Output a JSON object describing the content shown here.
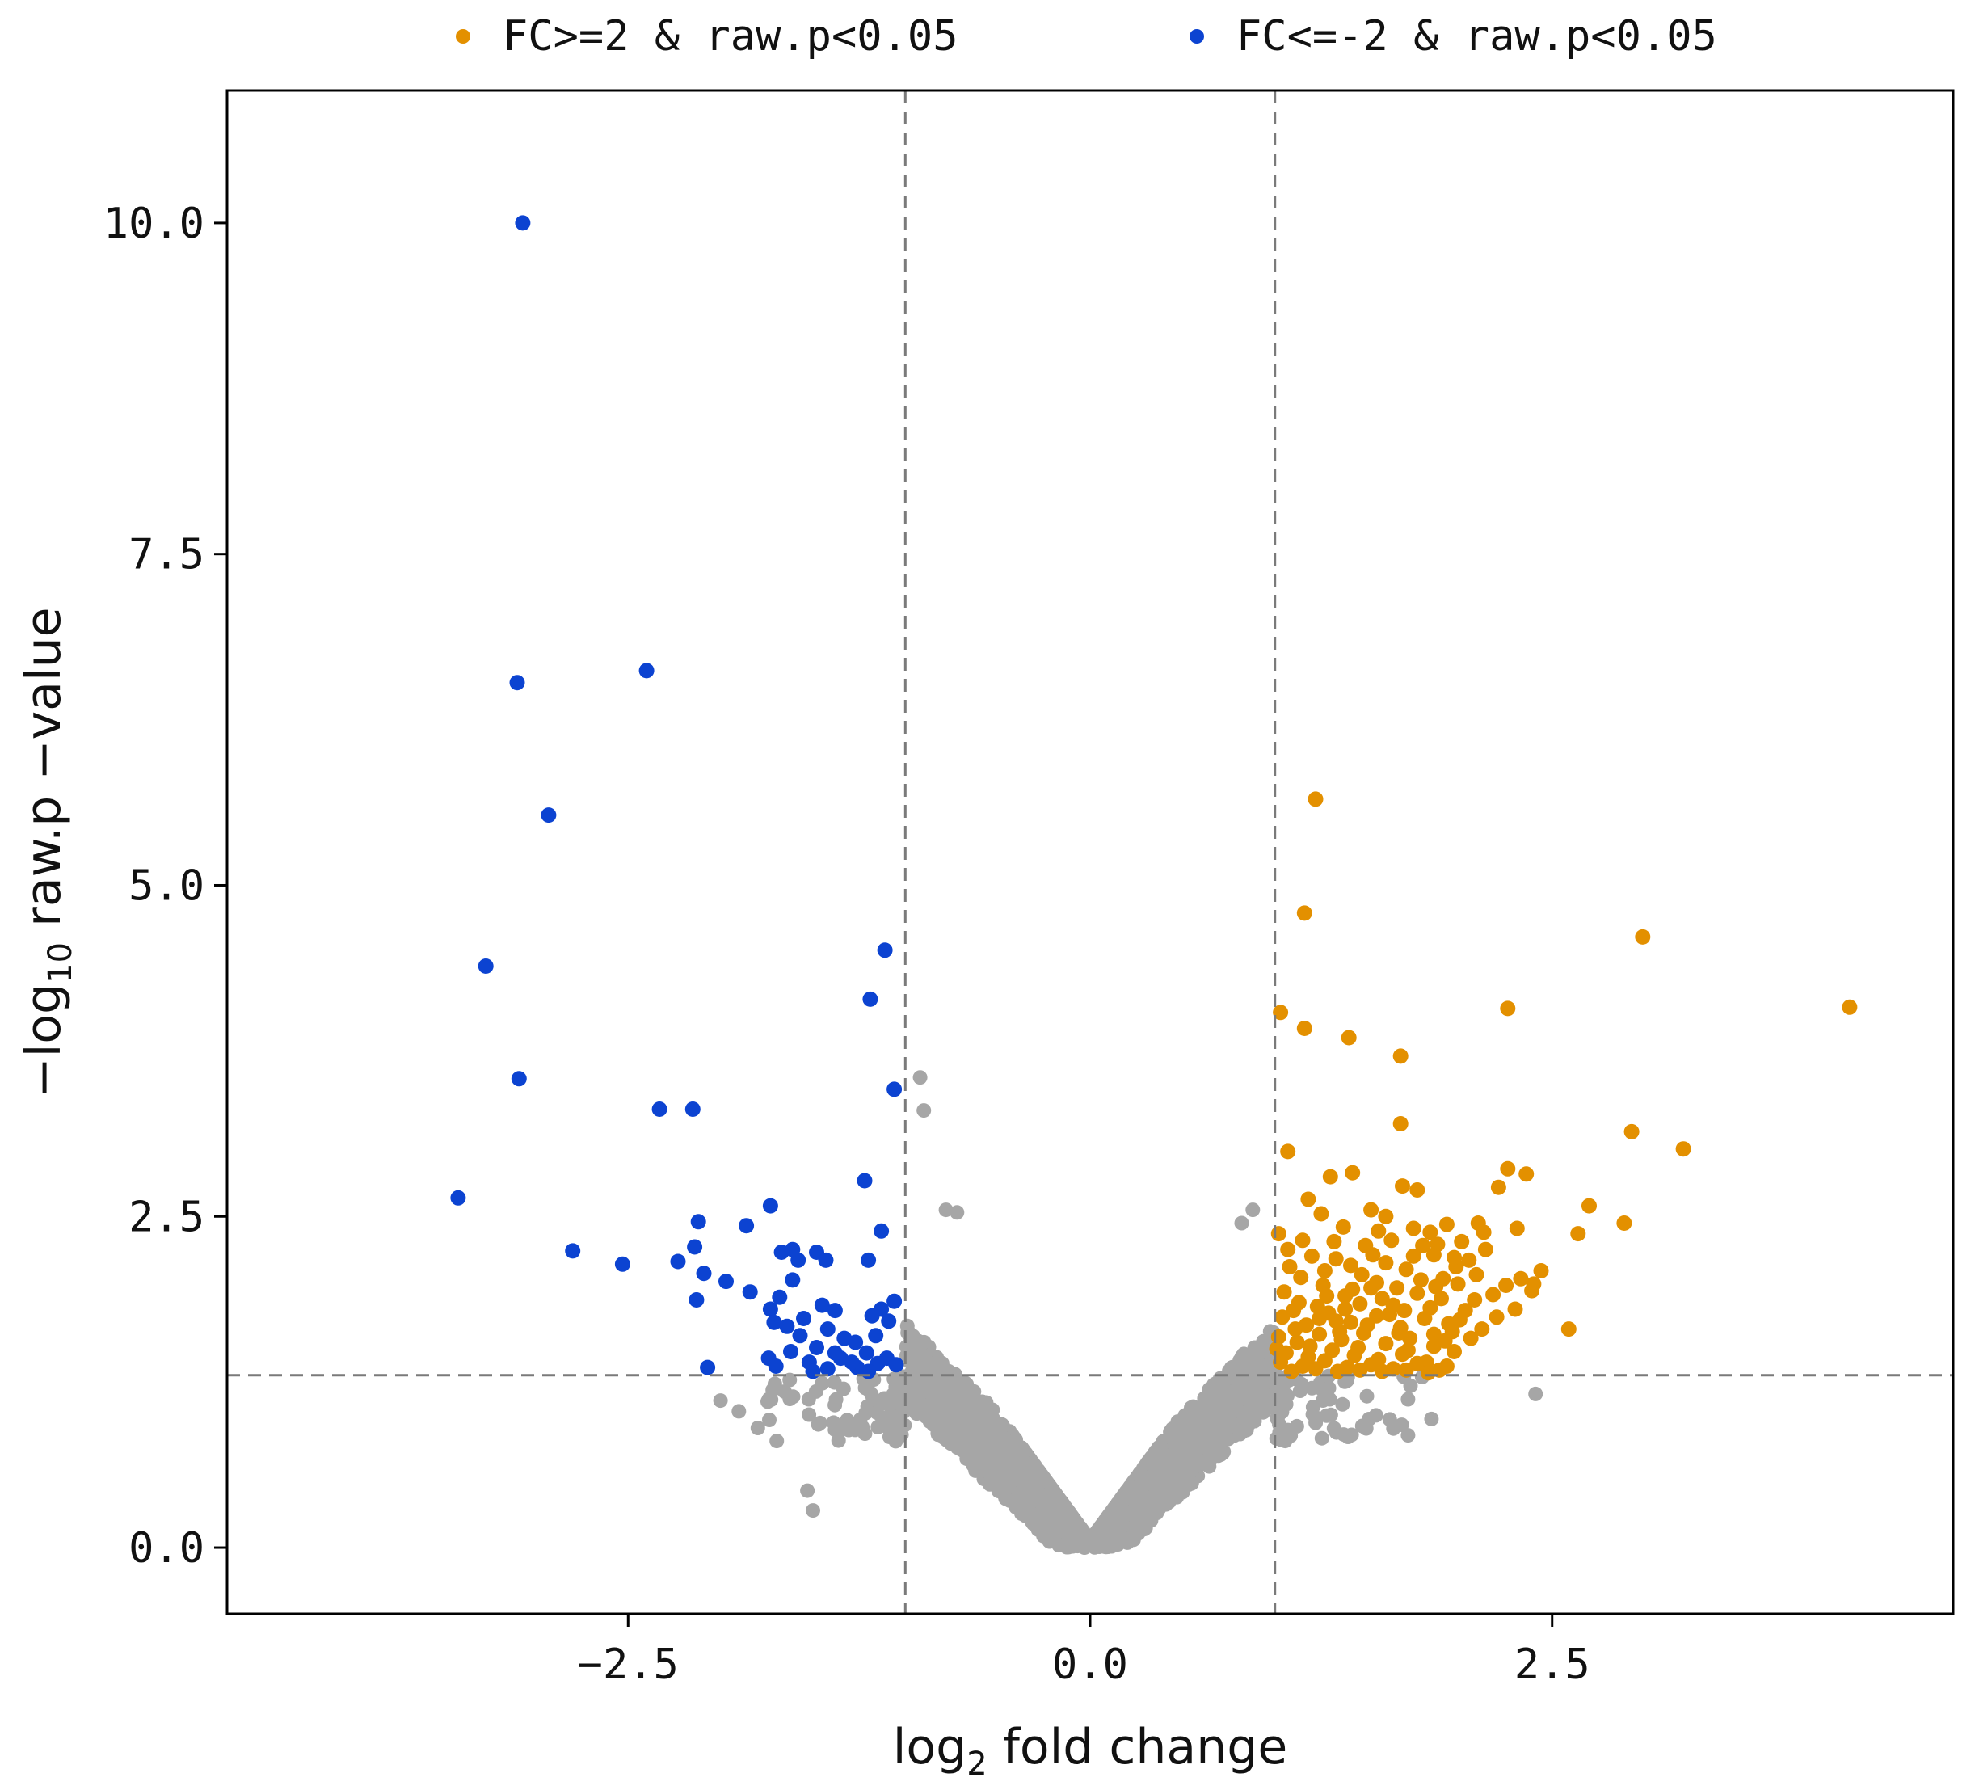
{
  "chart_data": {
    "type": "scatter",
    "title": "",
    "xlabel": "log₂ fold change",
    "xlabel_main": "log",
    "xlabel_sub": "2",
    "xlabel_rest": " fold change",
    "ylabel": "−log₁₀ raw.p −value",
    "ylabel_main": "−log",
    "ylabel_sub": "10",
    "ylabel_rest": " raw.p −value",
    "xlim": [
      -4.67,
      4.67
    ],
    "ylim": [
      -0.5,
      11.0
    ],
    "xticks": [
      -2.5,
      0.0,
      2.5
    ],
    "xtick_labels": [
      "−2.5",
      "0.0",
      "2.5"
    ],
    "yticks": [
      0.0,
      2.5,
      5.0,
      7.5,
      10.0
    ],
    "ytick_labels": [
      "0.0",
      "2.5",
      "5.0",
      "7.5",
      "10.0"
    ],
    "grid": false,
    "legend_position": "top",
    "thresholds": {
      "log2fc_lines": [
        -1.0,
        1.0
      ],
      "neg_log10_p_line": 1.301
    },
    "series": [
      {
        "name": "not significant",
        "color": "#a6a6a6",
        "in_legend": false,
        "generated": "volcano-background cloud (dense, |log2FC| < ~2.5, -log10 p < ~3.5)"
      },
      {
        "name": "FC>=2 & raw.p<0.05",
        "color": "#e39000",
        "in_legend": true,
        "points": [
          [
            1.22,
            5.65
          ],
          [
            1.16,
            4.79
          ],
          [
            1.03,
            4.04
          ],
          [
            1.16,
            3.92
          ],
          [
            1.4,
            3.85
          ],
          [
            1.68,
            3.71
          ],
          [
            1.68,
            3.2
          ],
          [
            1.07,
            2.99
          ],
          [
            2.26,
            4.07
          ],
          [
            2.99,
            4.61
          ],
          [
            4.11,
            4.08
          ],
          [
            2.93,
            3.14
          ],
          [
            3.21,
            3.01
          ],
          [
            2.26,
            2.86
          ],
          [
            2.36,
            2.82
          ],
          [
            2.7,
            2.58
          ],
          [
            2.64,
            2.37
          ],
          [
            2.89,
            2.45
          ],
          [
            2.59,
            1.65
          ],
          [
            2.44,
            2.09
          ],
          [
            1.3,
            2.8
          ],
          [
            1.42,
            2.83
          ],
          [
            1.18,
            2.63
          ],
          [
            1.52,
            2.55
          ],
          [
            1.69,
            2.73
          ],
          [
            1.77,
            2.7
          ],
          [
            2.21,
            2.72
          ],
          [
            2.1,
            2.45
          ],
          [
            1.93,
            2.44
          ],
          [
            1.6,
            2.5
          ],
          [
            1.25,
            2.52
          ],
          [
            1.02,
            2.37
          ],
          [
            1.15,
            2.32
          ],
          [
            1.37,
            2.42
          ],
          [
            1.49,
            2.28
          ],
          [
            1.75,
            2.41
          ],
          [
            1.84,
            2.38
          ],
          [
            2.01,
            2.31
          ],
          [
            2.14,
            2.25
          ],
          [
            2.31,
            2.41
          ],
          [
            2.39,
            1.94
          ],
          [
            2.25,
            1.98
          ],
          [
            2.33,
            2.03
          ],
          [
            2.4,
            1.99
          ],
          [
            1.08,
            2.12
          ],
          [
            1.2,
            2.2
          ],
          [
            1.33,
            2.18
          ],
          [
            1.47,
            2.06
          ],
          [
            1.6,
            2.15
          ],
          [
            1.71,
            2.1
          ],
          [
            1.86,
            2.21
          ],
          [
            1.98,
            2.12
          ],
          [
            2.09,
            2.06
          ],
          [
            2.18,
            1.91
          ],
          [
            2.2,
            1.74
          ],
          [
            2.3,
            1.8
          ],
          [
            1.05,
            1.93
          ],
          [
            1.13,
            1.85
          ],
          [
            1.26,
            1.98
          ],
          [
            1.38,
            1.9
          ],
          [
            1.52,
            1.96
          ],
          [
            1.64,
            1.83
          ],
          [
            1.77,
            1.92
          ],
          [
            1.9,
            1.88
          ],
          [
            2.03,
            1.79
          ],
          [
            2.12,
            1.65
          ],
          [
            1.04,
            1.74
          ],
          [
            1.17,
            1.68
          ],
          [
            1.29,
            1.77
          ],
          [
            1.41,
            1.7
          ],
          [
            1.55,
            1.75
          ],
          [
            1.68,
            1.66
          ],
          [
            1.81,
            1.73
          ],
          [
            1.94,
            1.69
          ],
          [
            2.06,
            1.58
          ],
          [
            1.02,
            1.59
          ],
          [
            1.12,
            1.55
          ],
          [
            1.24,
            1.61
          ],
          [
            1.36,
            1.57
          ],
          [
            1.48,
            1.62
          ],
          [
            1.6,
            1.54
          ],
          [
            1.73,
            1.58
          ],
          [
            1.86,
            1.52
          ],
          [
            1.97,
            1.48
          ],
          [
            1.06,
            1.47
          ],
          [
            1.18,
            1.44
          ],
          [
            1.31,
            1.49
          ],
          [
            1.43,
            1.45
          ],
          [
            1.56,
            1.42
          ],
          [
            1.69,
            1.46
          ],
          [
            1.82,
            1.4
          ],
          [
            1.93,
            1.37
          ],
          [
            1.03,
            1.4
          ],
          [
            1.15,
            1.37
          ],
          [
            1.27,
            1.41
          ],
          [
            1.39,
            1.36
          ],
          [
            1.52,
            1.38
          ],
          [
            1.64,
            1.35
          ],
          [
            1.77,
            1.39
          ],
          [
            1.89,
            1.34
          ],
          [
            1.09,
            1.33
          ],
          [
            1.22,
            1.35
          ],
          [
            1.34,
            1.33
          ],
          [
            1.46,
            1.34
          ],
          [
            1.58,
            1.33
          ],
          [
            1.71,
            1.34
          ],
          [
            1.83,
            1.32
          ],
          [
            1.11,
            1.65
          ],
          [
            1.23,
            1.82
          ],
          [
            1.35,
            1.63
          ],
          [
            1.46,
            1.84
          ],
          [
            1.58,
            1.88
          ],
          [
            1.7,
            1.79
          ],
          [
            1.79,
            2.02
          ],
          [
            1.91,
            2.03
          ],
          [
            1.99,
            1.99
          ],
          [
            1.14,
            2.04
          ],
          [
            1.27,
            2.09
          ],
          [
            1.41,
            2.13
          ],
          [
            1.53,
            2.21
          ],
          [
            1.63,
            2.32
          ],
          [
            1.8,
            2.28
          ],
          [
            1.97,
            2.19
          ],
          [
            2.05,
            2.17
          ],
          [
            1.07,
            2.25
          ],
          [
            1.32,
            2.31
          ],
          [
            1.56,
            2.39
          ],
          [
            1.88,
            2.29
          ],
          [
            2.13,
            2.38
          ],
          [
            1.45,
            1.51
          ],
          [
            1.67,
            1.62
          ],
          [
            1.86,
            1.61
          ],
          [
            1.01,
            1.5
          ],
          [
            1.19,
            1.52
          ],
          [
            1.33,
            1.71
          ],
          [
            1.5,
            1.68
          ],
          [
            1.72,
            1.49
          ],
          [
            1.92,
            1.56
          ],
          [
            2.0,
            1.72
          ],
          [
            1.1,
            1.79
          ],
          [
            1.24,
            1.73
          ],
          [
            1.38,
            1.8
          ],
          [
            1.62,
            1.76
          ],
          [
            1.84,
            1.81
          ],
          [
            1.96,
            1.63
          ],
          [
            2.08,
            1.87
          ],
          [
            1.75,
            2.2
          ],
          [
            1.42,
            1.95
          ],
          [
            1.28,
            1.9
          ],
          [
            1.55,
            2.0
          ],
          [
            1.66,
            1.96
          ],
          [
            1.87,
            1.97
          ]
        ]
      },
      {
        "name": "FC<=-2 & raw.p<0.05",
        "color": "#0c43d1",
        "in_legend": true,
        "points": [
          [
            -3.07,
            10.0
          ],
          [
            -2.4,
            6.62
          ],
          [
            -3.1,
            6.53
          ],
          [
            -2.93,
            5.53
          ],
          [
            -3.27,
            4.39
          ],
          [
            -1.11,
            4.51
          ],
          [
            -1.19,
            4.14
          ],
          [
            -3.09,
            3.54
          ],
          [
            -1.06,
            3.46
          ],
          [
            -2.33,
            3.31
          ],
          [
            -2.15,
            3.31
          ],
          [
            -3.42,
            2.64
          ],
          [
            -1.22,
            2.77
          ],
          [
            -1.73,
            2.58
          ],
          [
            -2.12,
            2.46
          ],
          [
            -1.86,
            2.43
          ],
          [
            -1.13,
            2.39
          ],
          [
            -2.8,
            2.24
          ],
          [
            -2.53,
            2.14
          ],
          [
            -2.23,
            2.16
          ],
          [
            -2.14,
            2.27
          ],
          [
            -1.61,
            2.25
          ],
          [
            -1.48,
            2.23
          ],
          [
            -1.43,
            2.17
          ],
          [
            -1.2,
            2.17
          ],
          [
            -2.09,
            2.07
          ],
          [
            -1.97,
            2.01
          ],
          [
            -1.58,
            2.17
          ],
          [
            -1.67,
            2.23
          ],
          [
            -1.84,
            1.93
          ],
          [
            -1.61,
            2.02
          ],
          [
            -1.68,
            1.89
          ],
          [
            -2.13,
            1.87
          ],
          [
            -1.45,
            1.83
          ],
          [
            -1.13,
            1.8
          ],
          [
            -1.06,
            1.86
          ],
          [
            -1.38,
            1.79
          ],
          [
            -1.73,
            1.8
          ],
          [
            -1.71,
            1.7
          ],
          [
            -1.55,
            1.73
          ],
          [
            -1.64,
            1.67
          ],
          [
            -1.42,
            1.65
          ],
          [
            -1.18,
            1.75
          ],
          [
            -1.09,
            1.71
          ],
          [
            -1.33,
            1.58
          ],
          [
            -1.27,
            1.55
          ],
          [
            -1.48,
            1.51
          ],
          [
            -1.62,
            1.48
          ],
          [
            -1.74,
            1.43
          ],
          [
            -1.52,
            1.4
          ],
          [
            -1.35,
            1.43
          ],
          [
            -1.21,
            1.47
          ],
          [
            -1.1,
            1.43
          ],
          [
            -2.07,
            1.36
          ],
          [
            -1.7,
            1.37
          ],
          [
            -1.42,
            1.35
          ],
          [
            -1.26,
            1.36
          ],
          [
            -1.15,
            1.39
          ],
          [
            -1.38,
            1.47
          ],
          [
            -1.29,
            1.4
          ],
          [
            -1.5,
            1.33
          ],
          [
            -1.2,
            1.33
          ],
          [
            -1.05,
            1.38
          ],
          [
            -1.57,
            1.6
          ],
          [
            -1.16,
            1.6
          ]
        ]
      }
    ]
  }
}
